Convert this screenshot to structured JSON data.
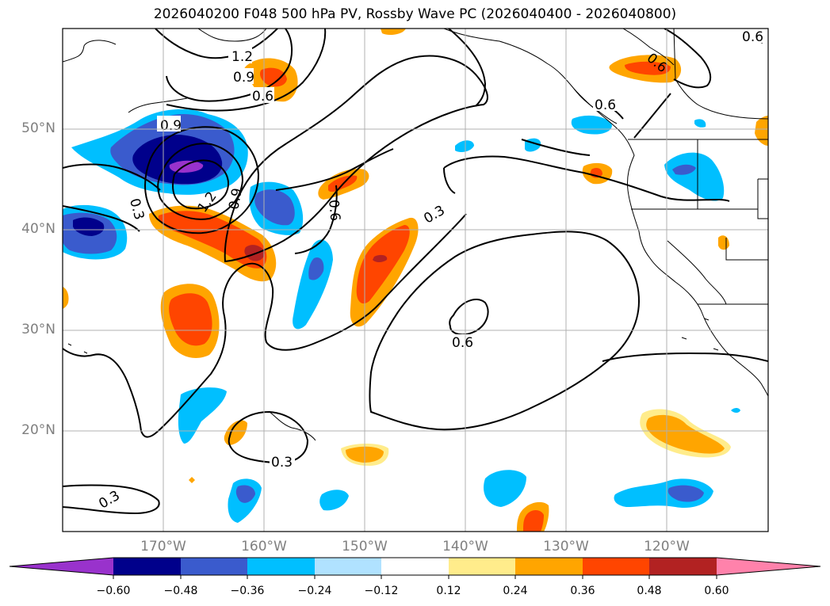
{
  "title": "2026040200 F048 500 hPa PV, Rossby Wave PC (2026040400 - 2026040800)",
  "map": {
    "latitude_labels": [
      "50°N",
      "40°N",
      "30°N",
      "20°N"
    ],
    "longitude_labels": [
      "170°W",
      "160°W",
      "150°W",
      "140°W",
      "130°W",
      "120°W"
    ],
    "contour_labels": [
      "1.2",
      "0.9",
      "0.6",
      "0.9",
      "0.3",
      "1.2",
      "0.9",
      "0.6",
      "0.3",
      "0.6",
      "0.6",
      "0.3",
      "0.3",
      "0.6",
      "0.6"
    ]
  },
  "colorbar": {
    "ticks": [
      "−0.60",
      "−0.48",
      "−0.36",
      "−0.24",
      "−0.12",
      "0.12",
      "0.24",
      "0.36",
      "0.48",
      "0.60"
    ],
    "colors": [
      "#9932cc",
      "#00008b",
      "#3a5bcd",
      "#00bfff",
      "#b0e2ff",
      "#ffffff",
      "#ffec8b",
      "#ffa500",
      "#ff4500",
      "#b22222",
      "#ff82ab"
    ]
  },
  "colors": {
    "grid": "#b0b0b0",
    "axis_label": "#7f7f7f",
    "contour": "#000000"
  }
}
